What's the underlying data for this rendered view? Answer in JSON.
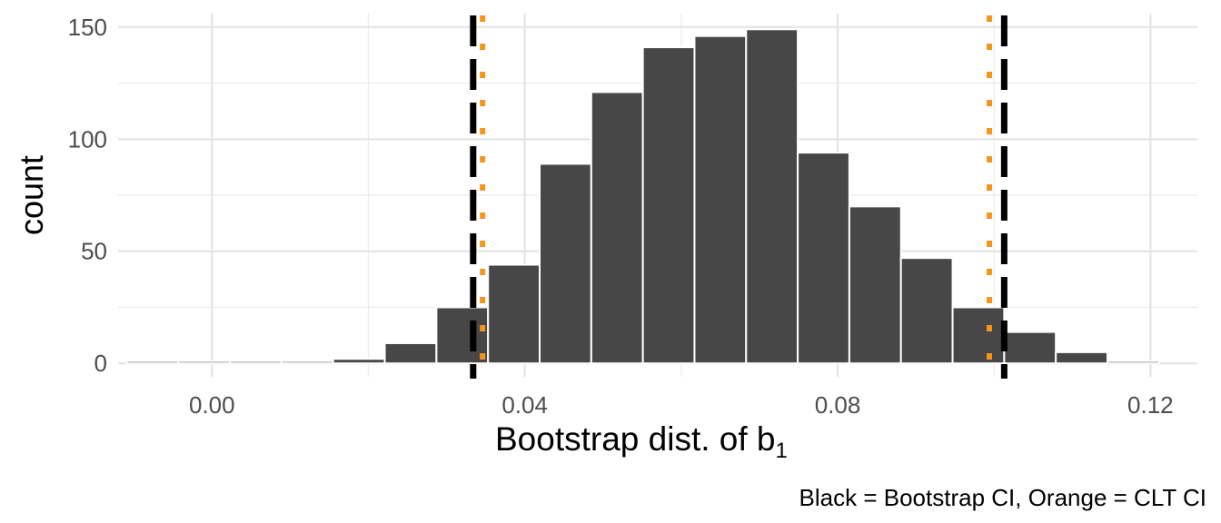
{
  "chart_data": {
    "type": "bar",
    "xlabel": "Bootstrap dist. of b",
    "xlabel_subscript": "1",
    "ylabel": "count",
    "caption": "Black = Bootstrap CI, Orange = CLT CI",
    "xlim": [
      -0.012,
      0.126
    ],
    "ylim": [
      -6,
      156
    ],
    "x_ticks": [
      0.0,
      0.04,
      0.08,
      0.12
    ],
    "x_tick_labels": [
      "0.00",
      "0.04",
      "0.08",
      "0.12"
    ],
    "y_ticks": [
      0,
      50,
      100,
      150
    ],
    "y_tick_labels": [
      "0",
      "50",
      "100",
      "150"
    ],
    "grid": true,
    "bar_color": "#474747",
    "bin_width": 0.0066,
    "bins": [
      {
        "x": -0.0076,
        "count": 0
      },
      {
        "x": -0.001,
        "count": 0
      },
      {
        "x": 0.0056,
        "count": 0
      },
      {
        "x": 0.0122,
        "count": 0
      },
      {
        "x": 0.0188,
        "count": 2
      },
      {
        "x": 0.0254,
        "count": 9
      },
      {
        "x": 0.032,
        "count": 25
      },
      {
        "x": 0.0386,
        "count": 44
      },
      {
        "x": 0.0452,
        "count": 89
      },
      {
        "x": 0.0518,
        "count": 121
      },
      {
        "x": 0.0584,
        "count": 141
      },
      {
        "x": 0.065,
        "count": 146
      },
      {
        "x": 0.0716,
        "count": 149
      },
      {
        "x": 0.0782,
        "count": 94
      },
      {
        "x": 0.0848,
        "count": 70
      },
      {
        "x": 0.0914,
        "count": 47
      },
      {
        "x": 0.098,
        "count": 25
      },
      {
        "x": 0.1046,
        "count": 14
      },
      {
        "x": 0.1112,
        "count": 5
      },
      {
        "x": 0.1178,
        "count": 0
      }
    ],
    "reference_lines": [
      {
        "x": 0.0334,
        "style": "dashed",
        "color": "#000000",
        "group": "Bootstrap CI"
      },
      {
        "x": 0.1013,
        "style": "dashed",
        "color": "#000000",
        "group": "Bootstrap CI"
      },
      {
        "x": 0.0346,
        "style": "dotted",
        "color": "#f7941d",
        "group": "CLT CI"
      },
      {
        "x": 0.0994,
        "style": "dotted",
        "color": "#f7941d",
        "group": "CLT CI"
      }
    ]
  }
}
